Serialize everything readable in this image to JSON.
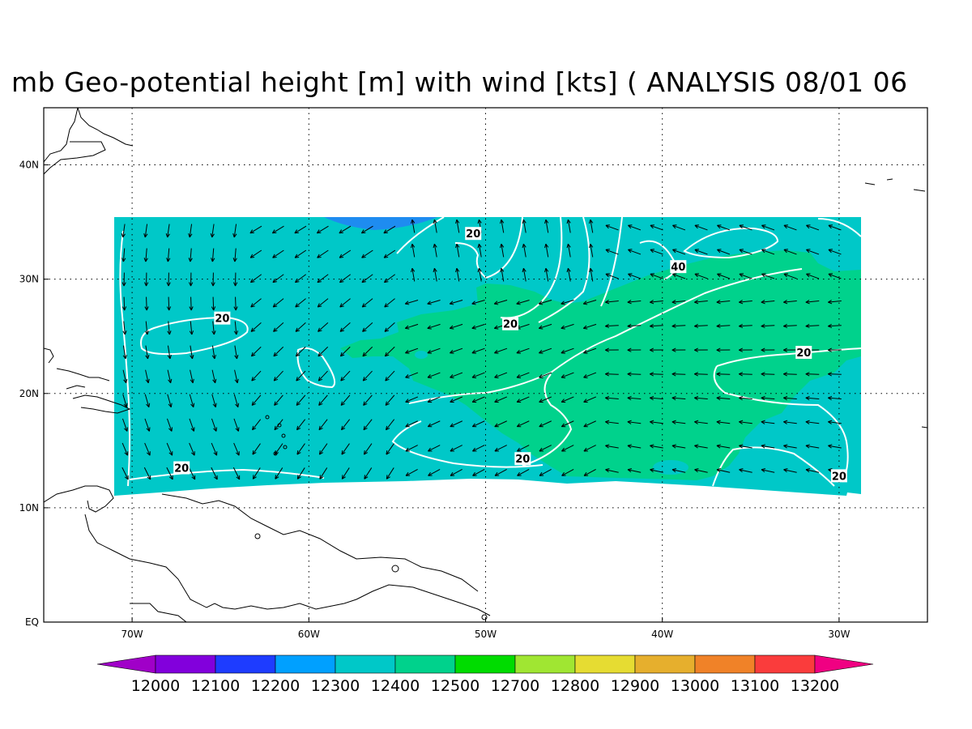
{
  "title": "mb Geo-potential height [m] with wind [kts] ( ANALYSIS 08/01 06",
  "map": {
    "lon_range": [
      -75,
      -25
    ],
    "lat_range": [
      0,
      45
    ],
    "data_region": {
      "lon": [
        -71,
        -28.8
      ],
      "lat": [
        11,
        35.5
      ]
    },
    "lon_ticks": [
      {
        "value": -70,
        "label": "70W"
      },
      {
        "value": -60,
        "label": "60W"
      },
      {
        "value": -50,
        "label": "50W"
      },
      {
        "value": -40,
        "label": "40W"
      },
      {
        "value": -30,
        "label": "30W"
      }
    ],
    "lat_ticks": [
      {
        "value": 0,
        "label": "EQ"
      },
      {
        "value": 10,
        "label": "10N"
      },
      {
        "value": 20,
        "label": "20N"
      },
      {
        "value": 30,
        "label": "30N"
      },
      {
        "value": 40,
        "label": "40N"
      }
    ],
    "grid": "dotted",
    "fill_colors": {
      "12300": "#00c8c8",
      "12400": "#00d28c",
      "12200": "#1e8cf0"
    },
    "isotach_color": "#ffffff",
    "isotach_labels": [
      {
        "text": "20",
        "lon": -67.2,
        "lat": 13.5
      },
      {
        "text": "20",
        "lon": -64.9,
        "lat": 26.6
      },
      {
        "text": "20",
        "lon": -50.7,
        "lat": 34.0
      },
      {
        "text": "20",
        "lon": -48.6,
        "lat": 26.1
      },
      {
        "text": "40",
        "lon": -39.1,
        "lat": 31.1
      },
      {
        "text": "20",
        "lon": -32.0,
        "lat": 23.6
      },
      {
        "text": "20",
        "lon": -47.9,
        "lat": 14.3
      },
      {
        "text": "20",
        "lon": -30.0,
        "lat": 12.8
      }
    ]
  },
  "colorbar": {
    "levels": [
      "12000",
      "12100",
      "12200",
      "12300",
      "12400",
      "12500",
      "12700",
      "12800",
      "12900",
      "13000",
      "13100",
      "13200"
    ],
    "colors": [
      "#a000c8",
      "#8200dc",
      "#1e3cff",
      "#00a0ff",
      "#00c8c8",
      "#00d28c",
      "#00dc00",
      "#a0e632",
      "#e6dc32",
      "#e6af2d",
      "#f08228",
      "#fa3c3c",
      "#f00082"
    ]
  }
}
